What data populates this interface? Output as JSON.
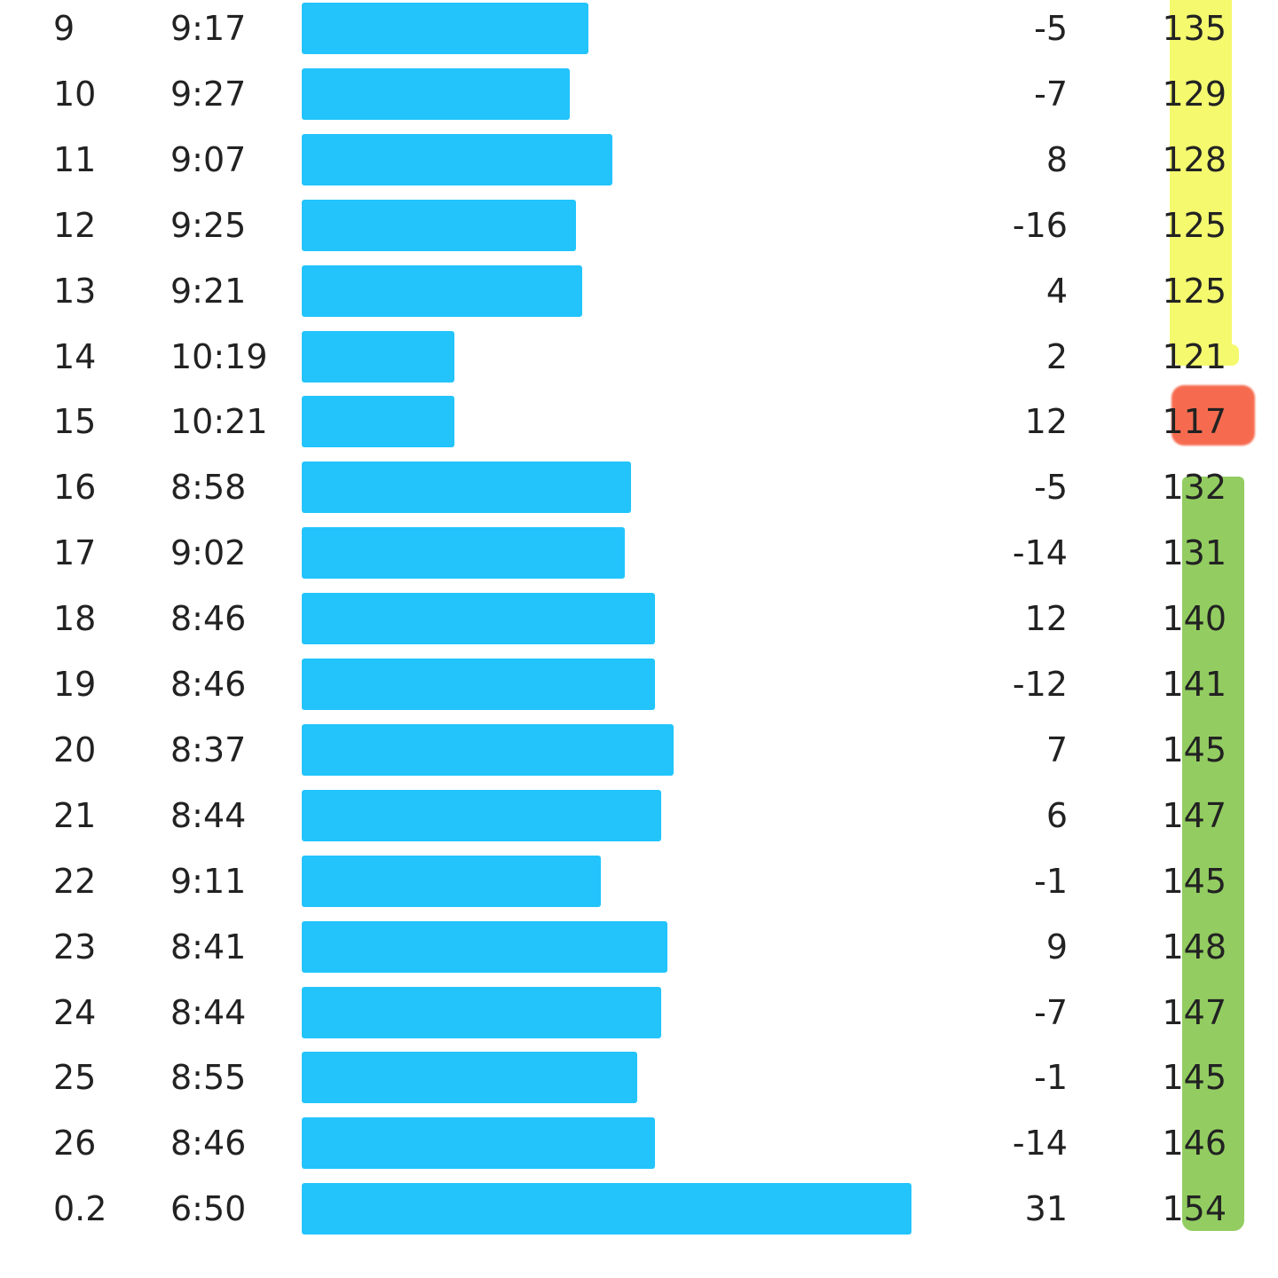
{
  "colors": {
    "bar": "#22c4fb",
    "highlight_yellow": "#f4f96e",
    "highlight_red": "#f66b4f",
    "highlight_green": "#93cd61"
  },
  "splits": [
    {
      "mile": "9",
      "pace": "9:17",
      "elevation": "-5",
      "heart_rate": "135",
      "pace_bar_fraction": 0.47
    },
    {
      "mile": "10",
      "pace": "9:27",
      "elevation": "-7",
      "heart_rate": "129",
      "pace_bar_fraction": 0.44
    },
    {
      "mile": "11",
      "pace": "9:07",
      "elevation": "8",
      "heart_rate": "128",
      "pace_bar_fraction": 0.51
    },
    {
      "mile": "12",
      "pace": "9:25",
      "elevation": "-16",
      "heart_rate": "125",
      "pace_bar_fraction": 0.45
    },
    {
      "mile": "13",
      "pace": "9:21",
      "elevation": "4",
      "heart_rate": "125",
      "pace_bar_fraction": 0.46
    },
    {
      "mile": "14",
      "pace": "10:19",
      "elevation": "2",
      "heart_rate": "121",
      "pace_bar_fraction": 0.25
    },
    {
      "mile": "15",
      "pace": "10:21",
      "elevation": "12",
      "heart_rate": "117",
      "pace_bar_fraction": 0.25
    },
    {
      "mile": "16",
      "pace": "8:58",
      "elevation": "-5",
      "heart_rate": "132",
      "pace_bar_fraction": 0.54
    },
    {
      "mile": "17",
      "pace": "9:02",
      "elevation": "-14",
      "heart_rate": "131",
      "pace_bar_fraction": 0.53
    },
    {
      "mile": "18",
      "pace": "8:46",
      "elevation": "12",
      "heart_rate": "140",
      "pace_bar_fraction": 0.58
    },
    {
      "mile": "19",
      "pace": "8:46",
      "elevation": "-12",
      "heart_rate": "141",
      "pace_bar_fraction": 0.58
    },
    {
      "mile": "20",
      "pace": "8:37",
      "elevation": "7",
      "heart_rate": "145",
      "pace_bar_fraction": 0.61
    },
    {
      "mile": "21",
      "pace": "8:44",
      "elevation": "6",
      "heart_rate": "147",
      "pace_bar_fraction": 0.59
    },
    {
      "mile": "22",
      "pace": "9:11",
      "elevation": "-1",
      "heart_rate": "145",
      "pace_bar_fraction": 0.49
    },
    {
      "mile": "23",
      "pace": "8:41",
      "elevation": "9",
      "heart_rate": "148",
      "pace_bar_fraction": 0.6
    },
    {
      "mile": "24",
      "pace": "8:44",
      "elevation": "-7",
      "heart_rate": "147",
      "pace_bar_fraction": 0.59
    },
    {
      "mile": "25",
      "pace": "8:55",
      "elevation": "-1",
      "heart_rate": "145",
      "pace_bar_fraction": 0.55
    },
    {
      "mile": "26",
      "pace": "8:46",
      "elevation": "-14",
      "heart_rate": "146",
      "pace_bar_fraction": 0.58
    },
    {
      "mile": "0.2",
      "pace": "6:50",
      "elevation": "31",
      "heart_rate": "154",
      "pace_bar_fraction": 1.0
    }
  ]
}
